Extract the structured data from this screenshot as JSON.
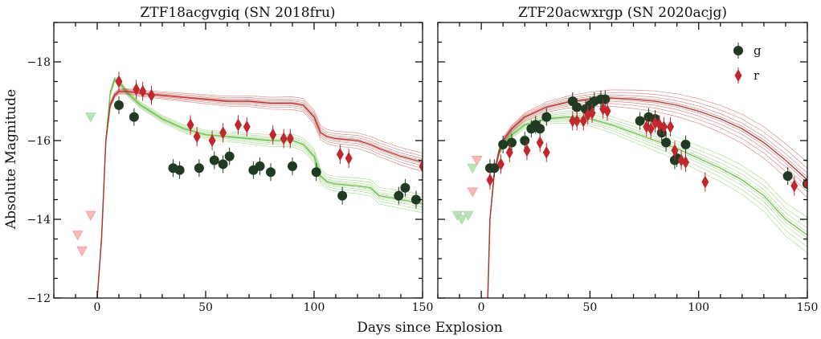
{
  "figure": {
    "xlabel": "Days since Explosion",
    "ylabel": "Absolute Magnitude"
  },
  "legend": {
    "entries": [
      {
        "label": "g",
        "marker": "circle",
        "color": "#1f3b24"
      },
      {
        "label": "r",
        "marker": "diamond",
        "color": "#c0282f"
      }
    ]
  },
  "colors": {
    "g_points": "#1f3b24",
    "r_points": "#c0282f",
    "g_models": "#6fc04a",
    "r_models": "#b5352f",
    "g_limits": "#a9dca9",
    "r_limits": "#f4a7a7"
  },
  "chart_data": [
    {
      "type": "scatter",
      "title": "ZTF18acgvgiq (SN 2018fru)",
      "xlim": [
        -20,
        150
      ],
      "ylim": [
        -12,
        -19
      ],
      "y_inverted": true,
      "xticks": [
        0,
        50,
        100,
        150
      ],
      "yticks": [
        -12,
        -14,
        -16,
        -18
      ],
      "series": [
        {
          "name": "g",
          "kind": "detections",
          "x": [
            10,
            17,
            35,
            38,
            47,
            54,
            58,
            61,
            72,
            75,
            80,
            90,
            101,
            113,
            139,
            142,
            147
          ],
          "y": [
            -16.9,
            -16.6,
            -15.3,
            -15.25,
            -15.3,
            -15.5,
            -15.4,
            -15.6,
            -15.25,
            -15.35,
            -15.2,
            -15.35,
            -15.2,
            -14.6,
            -14.6,
            -14.8,
            -14.5
          ]
        },
        {
          "name": "r",
          "kind": "detections",
          "x": [
            10,
            18,
            21,
            25,
            43,
            46,
            53,
            58,
            65,
            69,
            81,
            86,
            89,
            112,
            116,
            150
          ],
          "y": [
            -17.5,
            -17.3,
            -17.25,
            -17.15,
            -16.4,
            -16.1,
            -16.0,
            -16.2,
            -16.4,
            -16.35,
            -16.15,
            -16.05,
            -16.05,
            -15.65,
            -15.55,
            -15.35
          ]
        },
        {
          "name": "g",
          "kind": "upper-limits",
          "x": [
            -3
          ],
          "y": [
            -16.6
          ]
        },
        {
          "name": "r",
          "kind": "upper-limits",
          "x": [
            -9,
            -7,
            -3
          ],
          "y": [
            -13.6,
            -13.2,
            -14.1
          ]
        }
      ],
      "models": {
        "g": {
          "x": [
            0,
            2,
            4,
            6,
            8,
            10,
            14,
            20,
            30,
            40,
            50,
            60,
            70,
            80,
            90,
            95,
            100,
            103,
            106,
            110,
            120,
            126,
            130,
            140,
            150
          ],
          "y": [
            -12,
            -13.5,
            -16.0,
            -17.2,
            -17.55,
            -17.5,
            -17.2,
            -16.9,
            -16.55,
            -16.3,
            -16.15,
            -16.1,
            -16.05,
            -16.0,
            -16.0,
            -15.9,
            -15.6,
            -15.1,
            -14.95,
            -14.9,
            -14.85,
            -14.8,
            -14.6,
            -14.5,
            -14.4
          ]
        },
        "r": {
          "x": [
            0,
            2,
            4,
            6,
            8,
            10,
            14,
            20,
            30,
            40,
            50,
            60,
            70,
            80,
            90,
            95,
            100,
            103,
            106,
            110,
            120,
            126,
            130,
            140,
            150
          ],
          "y": [
            -12,
            -13.5,
            -16.0,
            -16.9,
            -17.15,
            -17.25,
            -17.25,
            -17.2,
            -17.15,
            -17.1,
            -17.05,
            -17.0,
            -17.0,
            -16.95,
            -16.95,
            -16.9,
            -16.6,
            -16.2,
            -16.1,
            -16.05,
            -16.0,
            -15.9,
            -15.8,
            -15.6,
            -15.45
          ]
        }
      }
    },
    {
      "type": "scatter",
      "title": "ZTF20acwxrgp (SN 2020acjg)",
      "xlim": [
        -20,
        150
      ],
      "ylim": [
        -12,
        -19
      ],
      "y_inverted": true,
      "xticks": [
        0,
        50,
        100,
        150
      ],
      "yticks": [
        -12,
        -14,
        -16,
        -18
      ],
      "series": [
        {
          "name": "g",
          "kind": "detections",
          "x": [
            4,
            6,
            10,
            14,
            20,
            23,
            25,
            27,
            30,
            42,
            44,
            48,
            50,
            52,
            55,
            57,
            73,
            77,
            80,
            83,
            85,
            89,
            90,
            94,
            141,
            150
          ],
          "y": [
            -15.3,
            -15.3,
            -15.9,
            -15.95,
            -16.0,
            -16.3,
            -16.4,
            -16.3,
            -16.6,
            -17.0,
            -16.85,
            -16.8,
            -16.9,
            -17.0,
            -17.05,
            -17.05,
            -16.5,
            -16.6,
            -16.55,
            -16.2,
            -15.95,
            -15.5,
            -15.55,
            -15.9,
            -15.1,
            -14.9
          ]
        },
        {
          "name": "r",
          "kind": "detections",
          "x": [
            4,
            9,
            13,
            21,
            27,
            30,
            42,
            44,
            47,
            49,
            51,
            56,
            58,
            76,
            78,
            80,
            82,
            84,
            87,
            89,
            92,
            94,
            103,
            144,
            150
          ],
          "y": [
            -15.0,
            -15.4,
            -15.7,
            -15.75,
            -15.95,
            -15.7,
            -16.5,
            -16.5,
            -16.5,
            -16.65,
            -16.7,
            -16.8,
            -16.75,
            -16.35,
            -16.3,
            -16.45,
            -16.4,
            -16.35,
            -16.35,
            -15.75,
            -15.5,
            -15.45,
            -14.95,
            -14.85,
            -14.9
          ]
        },
        {
          "name": "g",
          "kind": "upper-limits",
          "x": [
            -11,
            -9,
            -6,
            -4
          ],
          "y": [
            -14.1,
            -14.0,
            -14.1,
            -15.3
          ]
        },
        {
          "name": "r",
          "kind": "upper-limits",
          "x": [
            -4,
            -2
          ],
          "y": [
            -14.7,
            -15.5
          ]
        }
      ],
      "models": {
        "g": {
          "x": [
            3,
            4,
            6,
            8,
            10,
            14,
            20,
            30,
            40,
            50,
            60,
            70,
            80,
            90,
            100,
            110,
            120,
            130,
            140,
            150
          ],
          "y": [
            -12,
            -14.0,
            -15.2,
            -15.65,
            -15.9,
            -16.15,
            -16.4,
            -16.55,
            -16.6,
            -16.55,
            -16.4,
            -16.2,
            -16.0,
            -15.8,
            -15.55,
            -15.3,
            -15.0,
            -14.6,
            -14.0,
            -13.6
          ]
        },
        "r": {
          "x": [
            3,
            4,
            6,
            8,
            10,
            14,
            20,
            30,
            40,
            50,
            60,
            70,
            80,
            90,
            100,
            110,
            120,
            130,
            140,
            150
          ],
          "y": [
            -12,
            -14.0,
            -15.2,
            -15.7,
            -16.0,
            -16.3,
            -16.6,
            -16.85,
            -16.98,
            -17.05,
            -17.08,
            -17.05,
            -17.0,
            -16.9,
            -16.75,
            -16.55,
            -16.3,
            -15.95,
            -15.5,
            -15.0
          ]
        }
      }
    }
  ]
}
